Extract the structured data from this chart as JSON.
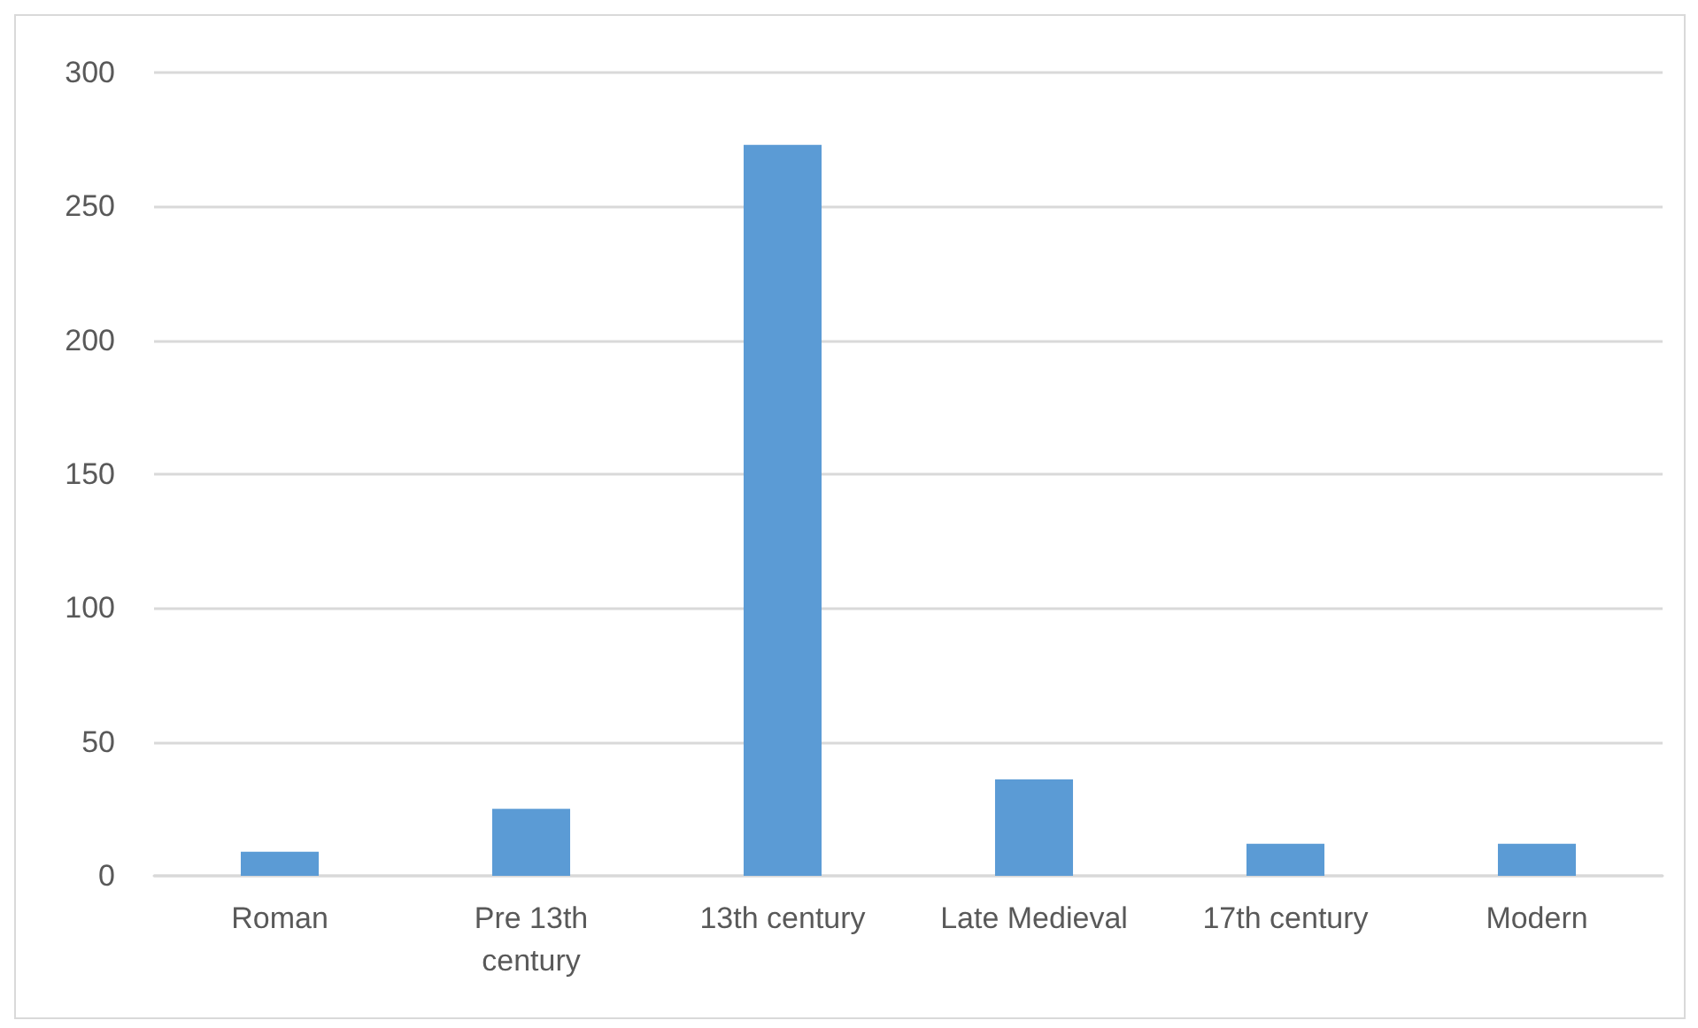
{
  "chart_data": {
    "type": "bar",
    "categories": [
      "Roman",
      "Pre 13th\ncentury",
      "13th century",
      "Late Medieval",
      "17th century",
      "Modern"
    ],
    "values": [
      9,
      25,
      273,
      36,
      12,
      12
    ],
    "color": "#5b9bd5",
    "ylim": [
      0,
      300
    ],
    "yticks": [
      0,
      50,
      100,
      150,
      200,
      250,
      300
    ],
    "grid": "y"
  }
}
